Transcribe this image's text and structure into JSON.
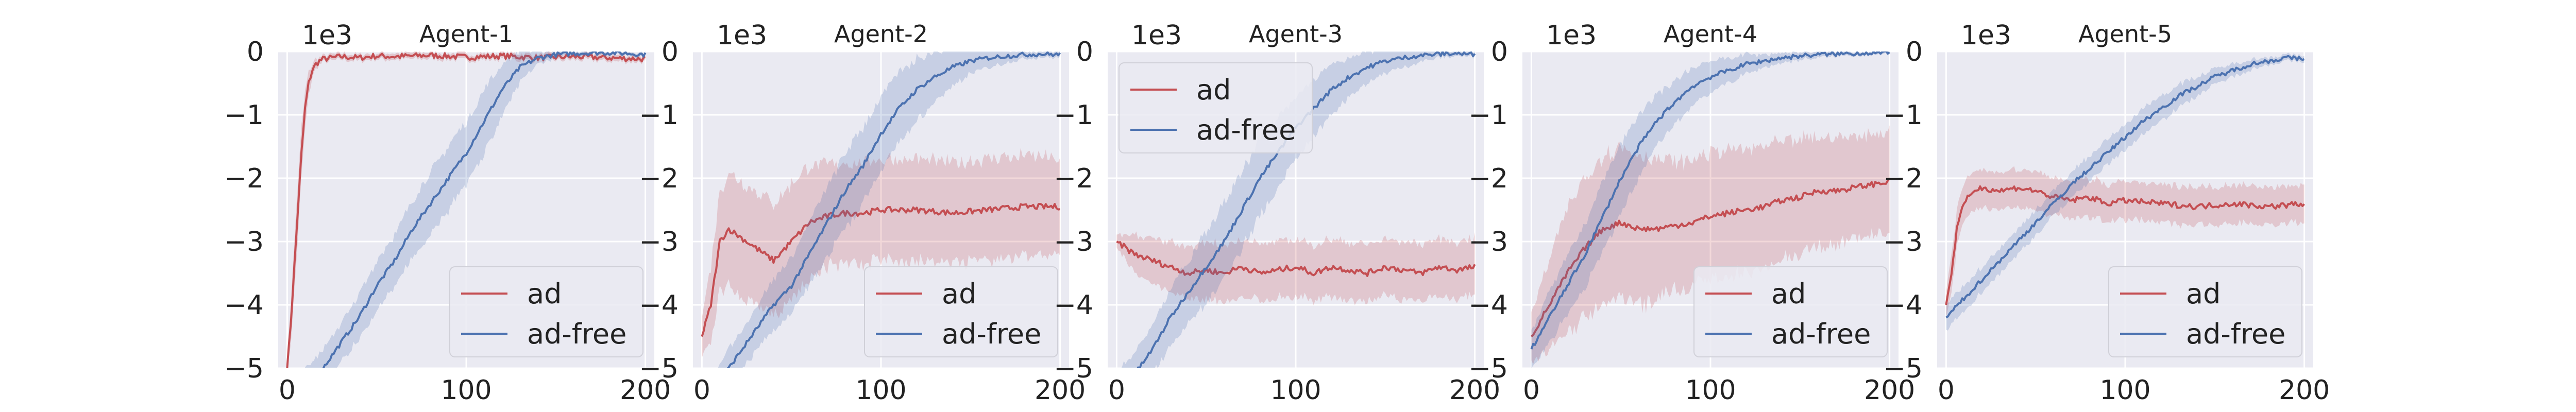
{
  "chart_data": [
    {
      "type": "line",
      "title": "Agent-1",
      "scale_label": "1e3",
      "xlabel": "",
      "ylabel": "",
      "xlim": [
        -5,
        205
      ],
      "ylim": [
        -5,
        0
      ],
      "xticks": [
        0,
        100,
        200
      ],
      "yticks": [
        0,
        -1,
        -2,
        -3,
        -4,
        -5
      ],
      "grid": true,
      "legend": "bottom-right",
      "series": [
        {
          "name": "ad",
          "color": "#c44e52",
          "x": [
            0,
            2,
            4,
            6,
            8,
            10,
            12,
            14,
            16,
            18,
            20,
            25,
            30,
            40,
            50,
            60,
            80,
            100,
            120,
            140,
            160,
            180,
            200
          ],
          "y": [
            -5.0,
            -4.3,
            -3.4,
            -2.5,
            -1.6,
            -0.9,
            -0.5,
            -0.3,
            -0.2,
            -0.15,
            -0.12,
            -0.1,
            -0.08,
            -0.1,
            -0.07,
            -0.08,
            -0.06,
            -0.09,
            -0.07,
            -0.1,
            -0.08,
            -0.1,
            -0.12
          ],
          "band": [
            0.1,
            0.3,
            0.4,
            0.4,
            0.4,
            0.3,
            0.2,
            0.1,
            0.08,
            0.06,
            0.05,
            0.05,
            0.05,
            0.05,
            0.05,
            0.05,
            0.05,
            0.05,
            0.05,
            0.05,
            0.05,
            0.05,
            0.05
          ]
        },
        {
          "name": "ad-free",
          "color": "#4c72b0",
          "x": [
            0,
            10,
            20,
            30,
            40,
            50,
            60,
            70,
            80,
            90,
            100,
            110,
            120,
            130,
            140,
            150,
            160,
            170,
            180,
            190,
            200
          ],
          "y": [
            -5.6,
            -5.3,
            -5.0,
            -4.6,
            -4.2,
            -3.7,
            -3.3,
            -2.8,
            -2.4,
            -2.0,
            -1.6,
            -1.1,
            -0.6,
            -0.25,
            -0.1,
            -0.05,
            -0.03,
            -0.02,
            -0.02,
            -0.03,
            -0.05
          ],
          "band": [
            0.3,
            0.3,
            0.3,
            0.3,
            0.35,
            0.4,
            0.4,
            0.45,
            0.5,
            0.5,
            0.5,
            0.5,
            0.4,
            0.25,
            0.1,
            0.05,
            0.04,
            0.03,
            0.03,
            0.03,
            0.03
          ]
        }
      ]
    },
    {
      "type": "line",
      "title": "Agent-2",
      "scale_label": "1e3",
      "xlabel": "",
      "ylabel": "",
      "xlim": [
        -5,
        205
      ],
      "ylim": [
        -5,
        0
      ],
      "xticks": [
        0,
        100,
        200
      ],
      "yticks": [
        0,
        -1,
        -2,
        -3,
        -4,
        -5
      ],
      "grid": true,
      "legend": "bottom-right",
      "series": [
        {
          "name": "ad",
          "color": "#c44e52",
          "x": [
            0,
            5,
            10,
            15,
            20,
            30,
            40,
            50,
            60,
            70,
            80,
            90,
            100,
            120,
            140,
            160,
            180,
            200
          ],
          "y": [
            -4.5,
            -4.0,
            -3.0,
            -2.8,
            -2.9,
            -3.1,
            -3.3,
            -3.0,
            -2.7,
            -2.6,
            -2.55,
            -2.55,
            -2.5,
            -2.5,
            -2.55,
            -2.5,
            -2.45,
            -2.45
          ],
          "band": [
            0.3,
            0.6,
            0.8,
            0.9,
            0.9,
            0.9,
            0.9,
            0.9,
            0.9,
            0.8,
            0.8,
            0.8,
            0.8,
            0.8,
            0.8,
            0.8,
            0.8,
            0.75
          ]
        },
        {
          "name": "ad-free",
          "color": "#4c72b0",
          "x": [
            0,
            10,
            20,
            30,
            40,
            50,
            60,
            70,
            80,
            90,
            100,
            110,
            120,
            130,
            140,
            150,
            160,
            170,
            180,
            190,
            200
          ],
          "y": [
            -5.7,
            -5.2,
            -4.8,
            -4.4,
            -4.0,
            -3.7,
            -3.2,
            -2.7,
            -2.2,
            -1.8,
            -1.3,
            -0.9,
            -0.6,
            -0.4,
            -0.25,
            -0.15,
            -0.1,
            -0.07,
            -0.05,
            -0.04,
            -0.05
          ],
          "band": [
            0.3,
            0.3,
            0.3,
            0.35,
            0.4,
            0.45,
            0.5,
            0.55,
            0.6,
            0.6,
            0.6,
            0.55,
            0.5,
            0.4,
            0.3,
            0.2,
            0.15,
            0.1,
            0.06,
            0.05,
            0.05
          ]
        }
      ]
    },
    {
      "type": "line",
      "title": "Agent-3",
      "scale_label": "1e3",
      "xlabel": "",
      "ylabel": "",
      "xlim": [
        -5,
        205
      ],
      "ylim": [
        -5,
        0
      ],
      "xticks": [
        0,
        100,
        200
      ],
      "yticks": [
        0,
        -1,
        -2,
        -3,
        -4,
        -5
      ],
      "grid": true,
      "legend": "top-left",
      "series": [
        {
          "name": "ad",
          "color": "#c44e52",
          "x": [
            0,
            5,
            10,
            20,
            30,
            40,
            50,
            60,
            70,
            80,
            90,
            100,
            110,
            120,
            130,
            140,
            150,
            160,
            170,
            180,
            190,
            200
          ],
          "y": [
            -3.0,
            -3.1,
            -3.2,
            -3.3,
            -3.4,
            -3.5,
            -3.45,
            -3.5,
            -3.4,
            -3.5,
            -3.45,
            -3.4,
            -3.5,
            -3.4,
            -3.45,
            -3.5,
            -3.4,
            -3.45,
            -3.5,
            -3.4,
            -3.45,
            -3.4
          ],
          "band": [
            0.1,
            0.2,
            0.3,
            0.35,
            0.4,
            0.4,
            0.45,
            0.45,
            0.45,
            0.45,
            0.45,
            0.45,
            0.45,
            0.45,
            0.45,
            0.45,
            0.45,
            0.45,
            0.45,
            0.45,
            0.45,
            0.45
          ]
        },
        {
          "name": "ad-free",
          "color": "#4c72b0",
          "x": [
            0,
            10,
            20,
            30,
            40,
            50,
            60,
            70,
            80,
            90,
            100,
            110,
            120,
            130,
            140,
            150,
            160,
            170,
            180,
            190,
            200
          ],
          "y": [
            -5.4,
            -5.1,
            -4.7,
            -4.2,
            -3.8,
            -3.4,
            -3.0,
            -2.5,
            -2.0,
            -1.6,
            -1.2,
            -0.9,
            -0.6,
            -0.4,
            -0.25,
            -0.15,
            -0.1,
            -0.06,
            -0.04,
            -0.03,
            -0.05
          ],
          "band": [
            0.35,
            0.35,
            0.4,
            0.45,
            0.5,
            0.55,
            0.6,
            0.6,
            0.6,
            0.55,
            0.5,
            0.45,
            0.4,
            0.3,
            0.25,
            0.2,
            0.15,
            0.1,
            0.06,
            0.04,
            0.04
          ]
        }
      ]
    },
    {
      "type": "line",
      "title": "Agent-4",
      "scale_label": "1e3",
      "xlabel": "",
      "ylabel": "",
      "xlim": [
        -5,
        205
      ],
      "ylim": [
        -5,
        0
      ],
      "xticks": [
        0,
        100,
        200
      ],
      "yticks": [
        0,
        -1,
        -2,
        -3,
        -4,
        -5
      ],
      "grid": true,
      "legend": "bottom-right",
      "series": [
        {
          "name": "ad",
          "color": "#c44e52",
          "x": [
            0,
            10,
            20,
            30,
            40,
            50,
            60,
            70,
            80,
            90,
            100,
            110,
            120,
            130,
            140,
            150,
            160,
            170,
            180,
            190,
            200
          ],
          "y": [
            -4.5,
            -4.0,
            -3.5,
            -3.1,
            -2.8,
            -2.7,
            -2.8,
            -2.8,
            -2.75,
            -2.7,
            -2.6,
            -2.55,
            -2.5,
            -2.45,
            -2.35,
            -2.3,
            -2.2,
            -2.2,
            -2.15,
            -2.1,
            -2.05
          ],
          "band": [
            0.4,
            0.7,
            1.0,
            1.1,
            1.2,
            1.2,
            1.2,
            1.1,
            1.0,
            1.0,
            1.0,
            1.0,
            0.95,
            0.95,
            0.9,
            0.9,
            0.85,
            0.85,
            0.8,
            0.8,
            0.8
          ]
        },
        {
          "name": "ad-free",
          "color": "#4c72b0",
          "x": [
            0,
            10,
            20,
            30,
            40,
            50,
            60,
            70,
            80,
            90,
            100,
            110,
            120,
            130,
            140,
            150,
            160,
            170,
            180,
            190,
            200
          ],
          "y": [
            -4.7,
            -4.2,
            -3.7,
            -3.2,
            -2.6,
            -2.0,
            -1.5,
            -1.1,
            -0.8,
            -0.55,
            -0.4,
            -0.3,
            -0.2,
            -0.15,
            -0.1,
            -0.07,
            -0.05,
            -0.04,
            -0.03,
            -0.02,
            -0.03
          ],
          "band": [
            0.3,
            0.4,
            0.45,
            0.5,
            0.55,
            0.55,
            0.5,
            0.4,
            0.35,
            0.3,
            0.25,
            0.2,
            0.15,
            0.1,
            0.08,
            0.06,
            0.05,
            0.04,
            0.03,
            0.03,
            0.03
          ]
        }
      ]
    },
    {
      "type": "line",
      "title": "Agent-5",
      "scale_label": "1e3",
      "xlabel": "",
      "ylabel": "",
      "xlim": [
        -5,
        205
      ],
      "ylim": [
        -5,
        0
      ],
      "xticks": [
        0,
        100,
        200
      ],
      "yticks": [
        0,
        -1,
        -2,
        -3,
        -4,
        -5
      ],
      "grid": true,
      "legend": "bottom-right",
      "series": [
        {
          "name": "ad",
          "color": "#c44e52",
          "x": [
            0,
            3,
            6,
            10,
            15,
            20,
            30,
            40,
            50,
            60,
            70,
            80,
            90,
            100,
            120,
            140,
            160,
            180,
            200
          ],
          "y": [
            -4.0,
            -3.5,
            -2.8,
            -2.4,
            -2.2,
            -2.15,
            -2.2,
            -2.15,
            -2.2,
            -2.3,
            -2.35,
            -2.3,
            -2.4,
            -2.35,
            -2.4,
            -2.45,
            -2.4,
            -2.45,
            -2.4
          ],
          "band": [
            0.2,
            0.3,
            0.3,
            0.3,
            0.3,
            0.3,
            0.3,
            0.3,
            0.3,
            0.3,
            0.3,
            0.3,
            0.3,
            0.3,
            0.3,
            0.3,
            0.3,
            0.3,
            0.3
          ]
        },
        {
          "name": "ad-free",
          "color": "#4c72b0",
          "x": [
            0,
            10,
            20,
            30,
            40,
            50,
            60,
            70,
            80,
            90,
            100,
            110,
            120,
            130,
            140,
            150,
            160,
            170,
            180,
            190,
            200
          ],
          "y": [
            -4.2,
            -3.9,
            -3.6,
            -3.3,
            -3.0,
            -2.7,
            -2.4,
            -2.1,
            -1.85,
            -1.6,
            -1.35,
            -1.1,
            -0.9,
            -0.7,
            -0.55,
            -0.4,
            -0.3,
            -0.2,
            -0.15,
            -0.1,
            -0.12
          ],
          "band": [
            0.2,
            0.2,
            0.2,
            0.2,
            0.2,
            0.2,
            0.2,
            0.2,
            0.2,
            0.2,
            0.2,
            0.2,
            0.2,
            0.18,
            0.15,
            0.12,
            0.1,
            0.08,
            0.06,
            0.05,
            0.05
          ]
        }
      ]
    }
  ]
}
